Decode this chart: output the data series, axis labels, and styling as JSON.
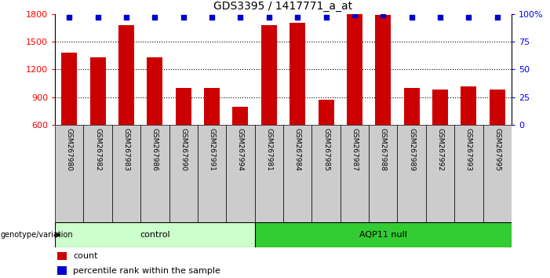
{
  "title": "GDS3395 / 1417771_a_at",
  "categories": [
    "GSM267980",
    "GSM267982",
    "GSM267983",
    "GSM267986",
    "GSM267990",
    "GSM267991",
    "GSM267994",
    "GSM267981",
    "GSM267984",
    "GSM267985",
    "GSM267987",
    "GSM267988",
    "GSM267989",
    "GSM267992",
    "GSM267993",
    "GSM267995"
  ],
  "counts": [
    1380,
    1330,
    1680,
    1330,
    1000,
    1000,
    800,
    1680,
    1700,
    870,
    1800,
    1790,
    1000,
    980,
    1020,
    980
  ],
  "percentile_ranks": [
    97,
    97,
    97,
    97,
    97,
    97,
    97,
    97,
    97,
    97,
    99,
    99,
    97,
    97,
    97,
    97
  ],
  "bar_color": "#cc0000",
  "dot_color": "#0000cc",
  "ylim_left": [
    600,
    1800
  ],
  "ylim_right": [
    0,
    100
  ],
  "yticks_left": [
    600,
    900,
    1200,
    1500,
    1800
  ],
  "yticks_right": [
    0,
    25,
    50,
    75,
    100
  ],
  "grid_values": [
    900,
    1200,
    1500
  ],
  "control_label": "control",
  "aqp_label": "AQP11 null",
  "control_count": 7,
  "genotype_label": "genotype/variation",
  "legend_count_label": "count",
  "legend_pct_label": "percentile rank within the sample",
  "bg_color": "#ffffff",
  "tick_bg_color": "#cccccc",
  "control_bg": "#ccffcc",
  "aqp_bg": "#33cc33",
  "bar_width": 0.55
}
